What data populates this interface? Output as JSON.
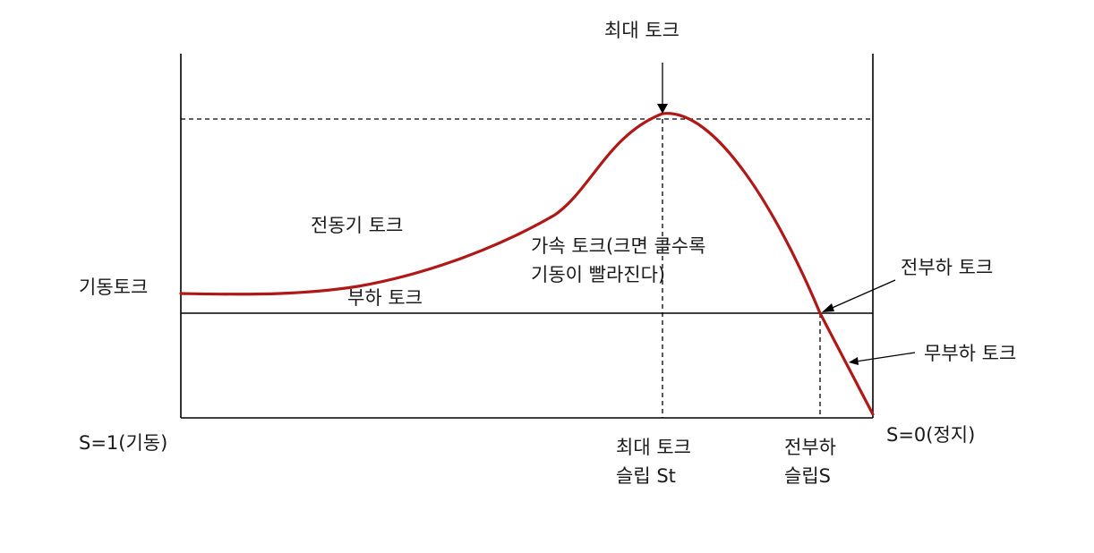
{
  "labels": {
    "max_torque_top": "최대 토크",
    "motor_torque": "전동기 토크",
    "starting_torque": "기동토크",
    "load_torque": "부하 토크",
    "accel_torque_line1": "가속 토크(크면 클수록",
    "accel_torque_line2": "기동이 빨라진다)",
    "full_load_torque": "전부하 토크",
    "no_load_torque": "무부하 토크",
    "s_start": "S=1(기동)",
    "s_stop": "S=0(정지)",
    "max_torque_slip_line1": "최대 토크",
    "max_torque_slip_line2": "슬립 St",
    "full_load_slip_line1": "전부하",
    "full_load_slip_line2": "슬립S"
  },
  "colors": {
    "curve": "#b01818",
    "lines": "#000000",
    "text": "#1a1a1a"
  }
}
